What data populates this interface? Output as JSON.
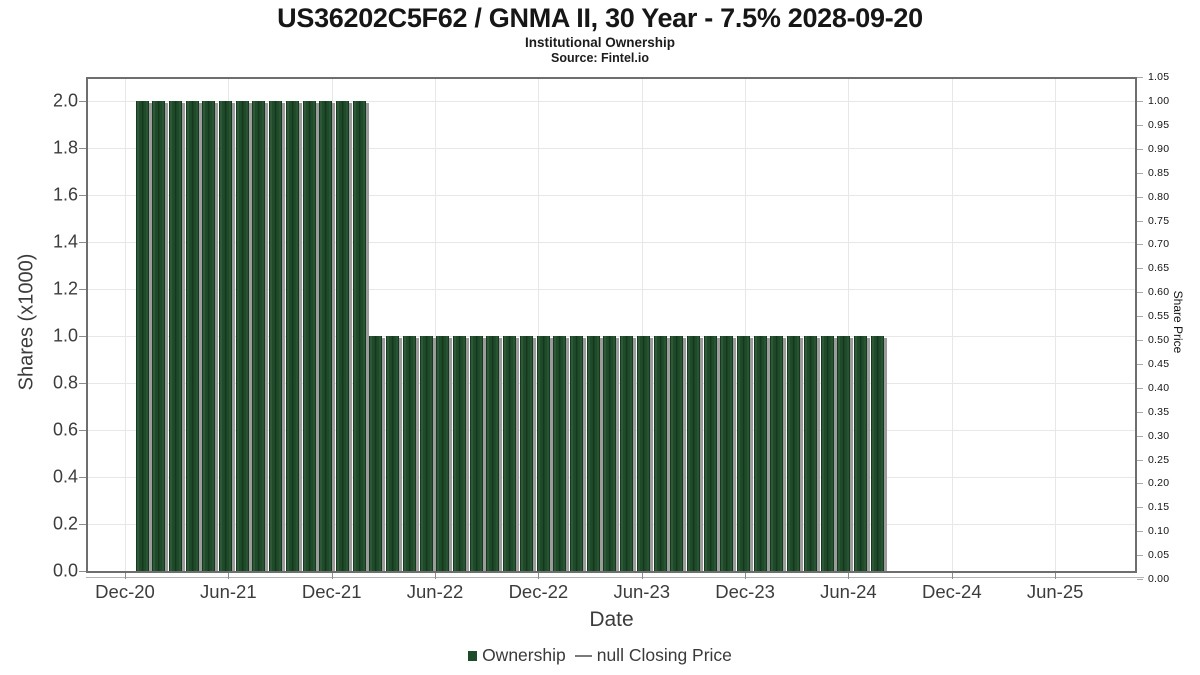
{
  "chart_data": {
    "type": "bar",
    "title": "US36202C5F62 / GNMA II, 30 Year - 7.5% 2028-09-20",
    "subtitle": "Institutional Ownership",
    "source": "Source: Fintel.io",
    "xlabel": "Date",
    "ylabel_left": "Shares (x1000)",
    "ylabel_right": "Share Price",
    "series_name": "Ownership",
    "bar_color": "#1e4b29",
    "bar_shadow_color": "#9c9c9c",
    "grid_color": "#e7e7e7",
    "axis_frame_color": "#6e6e6e",
    "ylim_left": [
      0.0,
      2.1
    ],
    "ylim_right": [
      0.0,
      1.05
    ],
    "grid": true,
    "legend_position": "bottom-center",
    "yticks_left": [
      "0.0",
      "0.2",
      "0.4",
      "0.6",
      "0.8",
      "1.0",
      "1.2",
      "1.4",
      "1.6",
      "1.8",
      "2.0"
    ],
    "yticks_right": [
      "0.00",
      "0.05",
      "0.10",
      "0.15",
      "0.20",
      "0.25",
      "0.30",
      "0.35",
      "0.40",
      "0.45",
      "0.50",
      "0.55",
      "0.60",
      "0.65",
      "0.70",
      "0.75",
      "0.80",
      "0.85",
      "0.90",
      "0.95",
      "1.00",
      "1.05"
    ],
    "xticks": [
      {
        "label": "Dec-20",
        "month": 0
      },
      {
        "label": "Jun-21",
        "month": 6
      },
      {
        "label": "Dec-21",
        "month": 12
      },
      {
        "label": "Jun-22",
        "month": 18
      },
      {
        "label": "Dec-22",
        "month": 24
      },
      {
        "label": "Jun-23",
        "month": 30
      },
      {
        "label": "Dec-23",
        "month": 36
      },
      {
        "label": "Jun-24",
        "month": 42
      },
      {
        "label": "Dec-24",
        "month": 48
      },
      {
        "label": "Jun-25",
        "month": 54
      }
    ],
    "categories": [
      "Dec-20",
      "Jan-21",
      "Feb-21",
      "Mar-21",
      "Apr-21",
      "May-21",
      "Jun-21",
      "Jul-21",
      "Aug-21",
      "Sep-21",
      "Oct-21",
      "Nov-21",
      "Dec-21",
      "Jan-22",
      "Feb-22",
      "Mar-22",
      "Apr-22",
      "May-22",
      "Jun-22",
      "Jul-22",
      "Aug-22",
      "Sep-22",
      "Oct-22",
      "Nov-22",
      "Dec-22",
      "Jan-23",
      "Feb-23",
      "Mar-23",
      "Apr-23",
      "May-23",
      "Jun-23",
      "Jul-23",
      "Aug-23",
      "Sep-23",
      "Oct-23",
      "Nov-23",
      "Dec-23",
      "Jan-24",
      "Feb-24",
      "Mar-24",
      "Apr-24",
      "May-24",
      "Jun-24",
      "Jul-24",
      "Aug-24"
    ],
    "values": [
      2.0,
      2.0,
      2.0,
      2.0,
      2.0,
      2.0,
      2.0,
      2.0,
      2.0,
      2.0,
      2.0,
      2.0,
      2.0,
      2.0,
      1.0,
      1.0,
      1.0,
      1.0,
      1.0,
      1.0,
      1.0,
      1.0,
      1.0,
      1.0,
      1.0,
      1.0,
      1.0,
      1.0,
      1.0,
      1.0,
      1.0,
      1.0,
      1.0,
      1.0,
      1.0,
      1.0,
      1.0,
      1.0,
      1.0,
      1.0,
      1.0,
      1.0,
      1.0,
      1.0,
      1.0
    ],
    "legend": {
      "ownership_label": "Ownership",
      "price_label": "null Closing Price"
    }
  }
}
